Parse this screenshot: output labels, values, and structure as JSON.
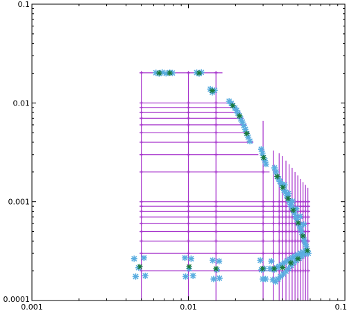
{
  "chart_data": {
    "type": "scatter",
    "title": "",
    "xlabel": "",
    "ylabel": "",
    "xscale": "log",
    "yscale": "log",
    "xlim": [
      0.001,
      0.1
    ],
    "ylim": [
      0.0001,
      0.1
    ],
    "grid": false,
    "legend": "none",
    "x_tick_labels": [
      {
        "value": 0.001,
        "label": "0.001"
      },
      {
        "value": 0.01,
        "label": "0.01"
      },
      {
        "value": 0.1,
        "label": "0.1"
      }
    ],
    "y_tick_labels": [
      {
        "value": 0.0001,
        "label": "0.0001"
      },
      {
        "value": 0.001,
        "label": "0.001"
      },
      {
        "value": 0.01,
        "label": "0.01"
      },
      {
        "value": 0.1,
        "label": "0.1"
      }
    ],
    "colors": {
      "measurement": "#5aade0",
      "fit": "#1a7a3a",
      "grid_lines": "#a633cc"
    },
    "series": [
      {
        "marker": "x",
        "color": "#5aade0",
        "points": [
          [
            0.0062,
            0.0202
          ],
          [
            0.0065,
            0.0198
          ],
          [
            0.0068,
            0.0204
          ],
          [
            0.0072,
            0.0199
          ],
          [
            0.0076,
            0.0203
          ],
          [
            0.0079,
            0.0201
          ],
          [
            0.0113,
            0.0203
          ],
          [
            0.0117,
            0.0198
          ],
          [
            0.0121,
            0.0204
          ],
          [
            0.0138,
            0.0138
          ],
          [
            0.0142,
            0.0128
          ],
          [
            0.0147,
            0.0134
          ],
          [
            0.0182,
            0.0104
          ],
          [
            0.0188,
            0.0099
          ],
          [
            0.0192,
            0.0094
          ],
          [
            0.0198,
            0.0089
          ],
          [
            0.0203,
            0.0084
          ],
          [
            0.0207,
            0.0079
          ],
          [
            0.0212,
            0.0074
          ],
          [
            0.0216,
            0.0069
          ],
          [
            0.0221,
            0.0064
          ],
          [
            0.0226,
            0.0059
          ],
          [
            0.0231,
            0.0054
          ],
          [
            0.0236,
            0.0049
          ],
          [
            0.0241,
            0.0045
          ],
          [
            0.0247,
            0.0041
          ],
          [
            0.0292,
            0.0034
          ],
          [
            0.0297,
            0.0031
          ],
          [
            0.0302,
            0.0028
          ],
          [
            0.0308,
            0.0026
          ],
          [
            0.0313,
            0.0024
          ],
          [
            0.0355,
            0.0022
          ],
          [
            0.0362,
            0.002
          ],
          [
            0.0369,
            0.0018
          ],
          [
            0.0377,
            0.0017
          ],
          [
            0.0385,
            0.0016
          ],
          [
            0.0393,
            0.0015
          ],
          [
            0.0401,
            0.0014
          ],
          [
            0.0409,
            0.0013
          ],
          [
            0.0417,
            0.00125
          ],
          [
            0.0425,
            0.00115
          ],
          [
            0.0433,
            0.00108
          ],
          [
            0.0441,
            0.00101
          ],
          [
            0.0449,
            0.00094
          ],
          [
            0.0458,
            0.00088
          ],
          [
            0.0467,
            0.00082
          ],
          [
            0.0476,
            0.00077
          ],
          [
            0.0485,
            0.00071
          ],
          [
            0.0494,
            0.00066
          ],
          [
            0.0503,
            0.00061
          ],
          [
            0.0512,
            0.00057
          ],
          [
            0.0521,
            0.00053
          ],
          [
            0.053,
            0.00049
          ],
          [
            0.0539,
            0.00045
          ],
          [
            0.0548,
            0.00041
          ],
          [
            0.0557,
            0.00038
          ],
          [
            0.0566,
            0.00035
          ],
          [
            0.0575,
            0.00032
          ],
          [
            0.0584,
            0.0003
          ],
          [
            0.0412,
            0.00148
          ],
          [
            0.0436,
            0.00121
          ],
          [
            0.0462,
            0.00101
          ],
          [
            0.0489,
            0.00085
          ],
          [
            0.0517,
            0.00071
          ],
          [
            0.0545,
            0.00059
          ],
          [
            0.0045,
            0.000265
          ],
          [
            0.0048,
            0.000215
          ],
          [
            0.0052,
            0.00027
          ],
          [
            0.0046,
            0.000175
          ],
          [
            0.0053,
            0.000178
          ],
          [
            0.0095,
            0.00027
          ],
          [
            0.0101,
            0.00021
          ],
          [
            0.0104,
            0.000265
          ],
          [
            0.0096,
            0.000175
          ],
          [
            0.0107,
            0.000178
          ],
          [
            0.0143,
            0.000255
          ],
          [
            0.0152,
            0.000205
          ],
          [
            0.0157,
            0.00025
          ],
          [
            0.0145,
            0.000165
          ],
          [
            0.0158,
            0.000168
          ],
          [
            0.0288,
            0.000255
          ],
          [
            0.0293,
            0.000205
          ],
          [
            0.0299,
            0.000165
          ],
          [
            0.0305,
            0.00021
          ],
          [
            0.0311,
            0.000165
          ],
          [
            0.0332,
            0.00021
          ],
          [
            0.0339,
            0.00025
          ],
          [
            0.0346,
            0.000162
          ],
          [
            0.0353,
            0.000205
          ],
          [
            0.036,
            0.000155
          ],
          [
            0.0367,
            0.000215
          ],
          [
            0.0374,
            0.000165
          ],
          [
            0.0381,
            0.000222
          ],
          [
            0.0388,
            0.000175
          ],
          [
            0.0396,
            0.000232
          ],
          [
            0.0404,
            0.000185
          ],
          [
            0.0412,
            0.000242
          ],
          [
            0.042,
            0.000198
          ],
          [
            0.0428,
            0.000252
          ],
          [
            0.0436,
            0.000211
          ],
          [
            0.0445,
            0.000262
          ],
          [
            0.0454,
            0.000226
          ],
          [
            0.0463,
            0.000272
          ],
          [
            0.0472,
            0.000241
          ],
          [
            0.0481,
            0.000282
          ],
          [
            0.0491,
            0.000255
          ],
          [
            0.0501,
            0.000291
          ],
          [
            0.0511,
            0.000268
          ],
          [
            0.0521,
            0.000301
          ],
          [
            0.0531,
            0.000282
          ],
          [
            0.0541,
            0.00031
          ],
          [
            0.0551,
            0.000296
          ],
          [
            0.0561,
            0.000318
          ]
        ]
      },
      {
        "marker": "x",
        "color": "#1a7a3a",
        "points": [
          [
            0.0065,
            0.0201
          ],
          [
            0.0076,
            0.0201
          ],
          [
            0.0117,
            0.0201
          ],
          [
            0.0142,
            0.0133
          ],
          [
            0.0192,
            0.0094
          ],
          [
            0.0212,
            0.0074
          ],
          [
            0.0236,
            0.0049
          ],
          [
            0.0302,
            0.0028
          ],
          [
            0.0369,
            0.0018
          ],
          [
            0.0401,
            0.0014
          ],
          [
            0.0433,
            0.00108
          ],
          [
            0.0467,
            0.00082
          ],
          [
            0.0503,
            0.00061
          ],
          [
            0.0539,
            0.00045
          ],
          [
            0.0575,
            0.00032
          ],
          [
            0.0049,
            0.00022
          ],
          [
            0.0101,
            0.00022
          ],
          [
            0.015,
            0.00021
          ],
          [
            0.0298,
            0.00021
          ],
          [
            0.0353,
            0.00021
          ],
          [
            0.04,
            0.000215
          ],
          [
            0.0451,
            0.00024
          ],
          [
            0.0501,
            0.000265
          ]
        ]
      }
    ],
    "bars": {
      "vertical": [
        {
          "x": 0.005,
          "y1": 0.0001,
          "y2": 0.0202
        },
        {
          "x": 0.01,
          "y1": 0.0001,
          "y2": 0.0202
        },
        {
          "x": 0.015,
          "y1": 0.0001,
          "y2": 0.0202
        },
        {
          "x": 0.03,
          "y1": 0.0001,
          "y2": 0.0066
        },
        {
          "x": 0.035,
          "y1": 0.0001,
          "y2": 0.0033
        },
        {
          "x": 0.038,
          "y1": 0.0001,
          "y2": 0.0031
        },
        {
          "x": 0.04,
          "y1": 0.0001,
          "y2": 0.0029
        },
        {
          "x": 0.042,
          "y1": 0.0001,
          "y2": 0.0026
        },
        {
          "x": 0.044,
          "y1": 0.0001,
          "y2": 0.0024
        },
        {
          "x": 0.046,
          "y1": 0.0001,
          "y2": 0.0022
        },
        {
          "x": 0.048,
          "y1": 0.0001,
          "y2": 0.002
        },
        {
          "x": 0.05,
          "y1": 0.0001,
          "y2": 0.00185
        },
        {
          "x": 0.052,
          "y1": 0.0001,
          "y2": 0.0017
        },
        {
          "x": 0.054,
          "y1": 0.0001,
          "y2": 0.00158
        },
        {
          "x": 0.056,
          "y1": 0.0001,
          "y2": 0.00148
        },
        {
          "x": 0.058,
          "y1": 0.0001,
          "y2": 0.00138
        }
      ],
      "horizontal": [
        {
          "y": 0.0202,
          "x1": 0.005,
          "x2": 0.0165
        },
        {
          "y": 0.01,
          "x1": 0.005,
          "x2": 0.0195
        },
        {
          "y": 0.009,
          "x1": 0.005,
          "x2": 0.0205
        },
        {
          "y": 0.008,
          "x1": 0.005,
          "x2": 0.0215
        },
        {
          "y": 0.007,
          "x1": 0.005,
          "x2": 0.0225
        },
        {
          "y": 0.006,
          "x1": 0.005,
          "x2": 0.0235
        },
        {
          "y": 0.005,
          "x1": 0.005,
          "x2": 0.0245
        },
        {
          "y": 0.004,
          "x1": 0.005,
          "x2": 0.026
        },
        {
          "y": 0.003,
          "x1": 0.005,
          "x2": 0.028
        },
        {
          "y": 0.002,
          "x1": 0.005,
          "x2": 0.033
        },
        {
          "y": 0.001,
          "x1": 0.005,
          "x2": 0.06
        },
        {
          "y": 0.0009,
          "x1": 0.005,
          "x2": 0.06
        },
        {
          "y": 0.0008,
          "x1": 0.005,
          "x2": 0.06
        },
        {
          "y": 0.0007,
          "x1": 0.005,
          "x2": 0.06
        },
        {
          "y": 0.0006,
          "x1": 0.005,
          "x2": 0.06
        },
        {
          "y": 0.0005,
          "x1": 0.005,
          "x2": 0.06
        },
        {
          "y": 0.0004,
          "x1": 0.005,
          "x2": 0.06
        },
        {
          "y": 0.0003,
          "x1": 0.005,
          "x2": 0.06
        },
        {
          "y": 0.0002,
          "x1": 0.005,
          "x2": 0.06
        }
      ]
    }
  }
}
